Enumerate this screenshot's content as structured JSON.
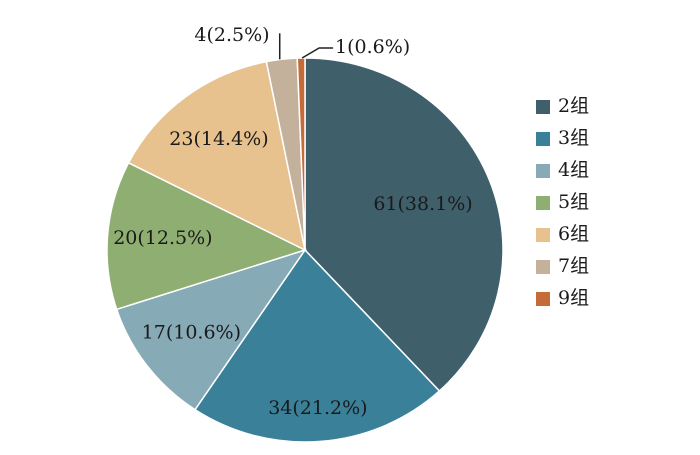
{
  "chart_data": {
    "type": "pie",
    "title": "",
    "legend_position": "right",
    "series": [
      {
        "legend": "2组",
        "value": 61,
        "label": "61(38.1%)",
        "color": "#3f5f6b"
      },
      {
        "legend": "3组",
        "value": 34,
        "label": "34(21.2%)",
        "color": "#3a8099"
      },
      {
        "legend": "4组",
        "value": 17,
        "label": "17(10.6%)",
        "color": "#86aab6"
      },
      {
        "legend": "5组",
        "value": 20,
        "label": "20(12.5%)",
        "color": "#8fae72"
      },
      {
        "legend": "6组",
        "value": 23,
        "label": "23(14.4%)",
        "color": "#e7c18e"
      },
      {
        "legend": "7组",
        "value": 4,
        "label": "4(2.5%)",
        "color": "#c4b19c"
      },
      {
        "legend": "9组",
        "value": 1,
        "label": "1(0.6%)",
        "color": "#c56b3a"
      }
    ]
  }
}
